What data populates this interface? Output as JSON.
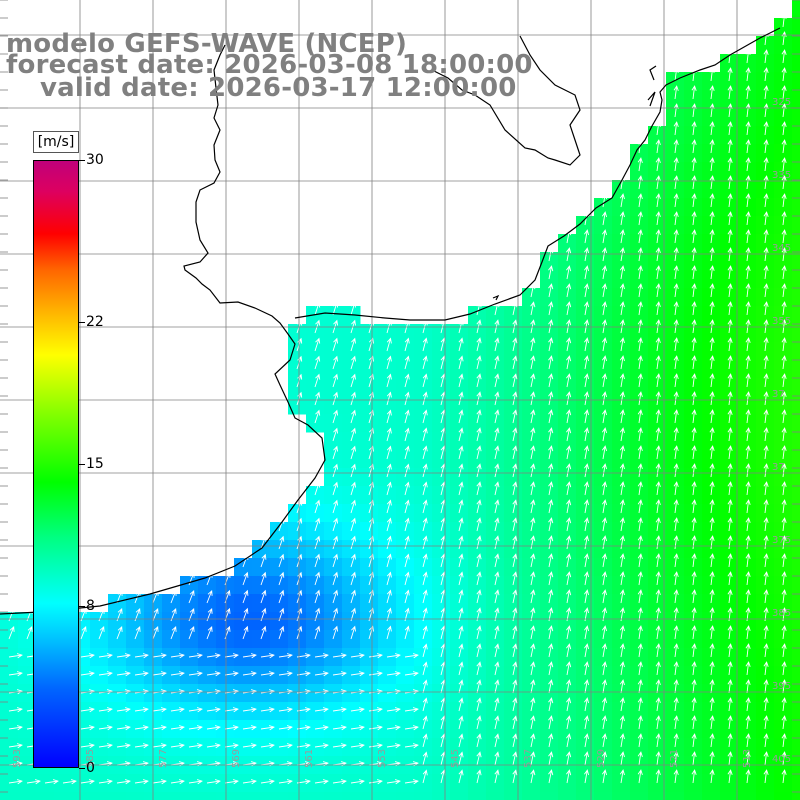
{
  "header": {
    "model_line": "modelo GEFS-WAVE (NCEP)",
    "forecast_line": "forecast date: 2026-03-08 18:00:00",
    "valid_line": "valid date: 2026-03-17 12:00:00"
  },
  "colorbar": {
    "unit": "[m/s]",
    "min": 0,
    "max": 30,
    "ticks": [
      {
        "value": 30,
        "label": "30"
      },
      {
        "value": 22,
        "label": "22"
      },
      {
        "value": 15,
        "label": "15"
      },
      {
        "value": 8,
        "label": "8"
      },
      {
        "value": 0,
        "label": "0"
      }
    ],
    "color_stops": [
      {
        "value": 0,
        "color": "#0000ff"
      },
      {
        "value": 4,
        "color": "#0066ff"
      },
      {
        "value": 6.6,
        "color": "#00ccff"
      },
      {
        "value": 8,
        "color": "#00ffff"
      },
      {
        "value": 11.5,
        "color": "#00ff80"
      },
      {
        "value": 14,
        "color": "#00ff00"
      },
      {
        "value": 17.5,
        "color": "#80ff00"
      },
      {
        "value": 20.5,
        "color": "#ffff00"
      },
      {
        "value": 23,
        "color": "#ffaa00"
      },
      {
        "value": 24.5,
        "color": "#ff6600"
      },
      {
        "value": 26.5,
        "color": "#ff0000"
      },
      {
        "value": 28.5,
        "color": "#dd0060"
      },
      {
        "value": 30,
        "color": "#c0007a"
      }
    ]
  },
  "map": {
    "land_color": "#ffffff",
    "coast_color": "#000000",
    "grid_color": "#808080",
    "arrow_color": "#ffffff",
    "field_description": "wind speed",
    "lat_labels": [
      "325",
      "335",
      "345",
      "355",
      "37",
      "37",
      "375",
      "385",
      "395",
      "405"
    ],
    "lon_labels": [
      "593",
      "585",
      "577",
      "569",
      "561",
      "553",
      "545",
      "537",
      "529",
      "521",
      "513"
    ]
  }
}
